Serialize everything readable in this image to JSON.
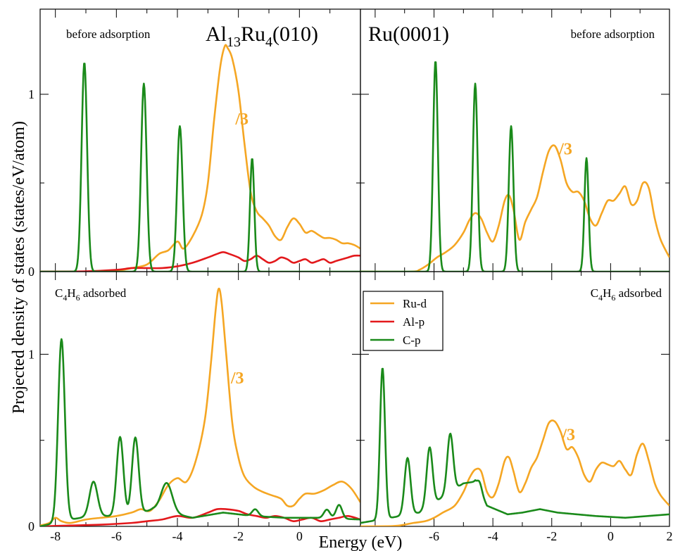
{
  "figure": {
    "ylabel": "Projected density of states (states/eV/atom)",
    "xlabel": "Energy (eV)"
  },
  "colors": {
    "Ru-d": "#f5a623",
    "Al-p": "#e3191c",
    "C-p": "#1a8a1a"
  },
  "legend": {
    "entries": [
      "Ru-d",
      "Al-p",
      "C-p"
    ],
    "placement": "top-left of bottom-right panel"
  },
  "chart_data": [
    {
      "id": "tl",
      "type": "line",
      "title_parts": {
        "base1": "Al",
        "sub1": "13",
        "base2": "Ru",
        "sub2": "4",
        "tail": "(010)"
      },
      "note": "before adsorption",
      "scale_note": "/3",
      "scale_note_at": [
        -2.1,
        0.83
      ],
      "xlim": [
        -8.5,
        2.0
      ],
      "ylim": [
        0,
        1.48
      ],
      "xticks": [],
      "yticks": [
        "0",
        "1"
      ],
      "series": [
        {
          "name": "Ru-d",
          "x": [
            -8.5,
            -7,
            -6,
            -5.5,
            -5,
            -4.6,
            -4.3,
            -4.0,
            -3.8,
            -3.5,
            -3.2,
            -3.0,
            -2.8,
            -2.6,
            -2.45,
            -2.35,
            -2.2,
            -2.0,
            -1.8,
            -1.6,
            -1.4,
            -1.2,
            -1.0,
            -0.8,
            -0.6,
            -0.4,
            -0.2,
            0.0,
            0.2,
            0.4,
            0.6,
            0.8,
            1.0,
            1.2,
            1.4,
            1.6,
            1.8,
            2.0
          ],
          "y": [
            0,
            0,
            0.005,
            0.02,
            0.04,
            0.1,
            0.12,
            0.17,
            0.13,
            0.2,
            0.32,
            0.5,
            0.85,
            1.15,
            1.27,
            1.26,
            1.2,
            1.02,
            0.72,
            0.45,
            0.34,
            0.3,
            0.26,
            0.2,
            0.18,
            0.25,
            0.3,
            0.27,
            0.22,
            0.23,
            0.21,
            0.19,
            0.19,
            0.18,
            0.16,
            0.16,
            0.15,
            0.13
          ]
        },
        {
          "name": "Al-p",
          "x": [
            -8.5,
            -7,
            -6,
            -5.5,
            -5,
            -4.5,
            -4.0,
            -3.5,
            -3.0,
            -2.7,
            -2.5,
            -2.3,
            -2.0,
            -1.8,
            -1.6,
            -1.4,
            -1.2,
            -1.0,
            -0.8,
            -0.6,
            -0.4,
            -0.2,
            0.0,
            0.2,
            0.4,
            0.6,
            0.8,
            1.0,
            1.2,
            1.4,
            1.6,
            1.8,
            2.0
          ],
          "y": [
            0,
            0.002,
            0.01,
            0.02,
            0.02,
            0.02,
            0.03,
            0.05,
            0.08,
            0.1,
            0.11,
            0.1,
            0.08,
            0.06,
            0.07,
            0.09,
            0.07,
            0.05,
            0.06,
            0.08,
            0.07,
            0.05,
            0.06,
            0.07,
            0.05,
            0.06,
            0.07,
            0.05,
            0.06,
            0.07,
            0.08,
            0.09,
            0.09
          ]
        },
        {
          "name": "C-p",
          "peaks": [
            [
              -7.05,
              1.18,
              0.09
            ],
            [
              -5.1,
              1.06,
              0.09
            ],
            [
              -3.92,
              0.82,
              0.09
            ],
            [
              -1.55,
              0.64,
              0.07
            ]
          ]
        }
      ]
    },
    {
      "id": "tr",
      "type": "line",
      "title_parts": {
        "base1": "Ru(0001)"
      },
      "note": "before adsorption",
      "scale_note": "/3",
      "scale_note_at": [
        -1.75,
        0.66
      ],
      "xlim": [
        -8.5,
        2.0
      ],
      "ylim": [
        0,
        1.48
      ],
      "xticks": [],
      "yticks": [],
      "series": [
        {
          "name": "Ru-d",
          "x": [
            -8.5,
            -6.8,
            -6.5,
            -6.2,
            -5.9,
            -5.6,
            -5.3,
            -5.0,
            -4.8,
            -4.6,
            -4.4,
            -4.2,
            -4.0,
            -3.8,
            -3.6,
            -3.45,
            -3.3,
            -3.1,
            -2.9,
            -2.7,
            -2.5,
            -2.3,
            -2.1,
            -1.9,
            -1.7,
            -1.5,
            -1.3,
            -1.1,
            -0.9,
            -0.7,
            -0.5,
            -0.3,
            -0.1,
            0.1,
            0.3,
            0.5,
            0.7,
            0.9,
            1.1,
            1.3,
            1.5,
            1.7,
            2.0
          ],
          "y": [
            0,
            0,
            0.01,
            0.04,
            0.08,
            0.11,
            0.15,
            0.22,
            0.29,
            0.33,
            0.3,
            0.22,
            0.17,
            0.26,
            0.4,
            0.43,
            0.35,
            0.18,
            0.28,
            0.35,
            0.42,
            0.56,
            0.68,
            0.71,
            0.63,
            0.5,
            0.45,
            0.45,
            0.4,
            0.3,
            0.26,
            0.33,
            0.4,
            0.4,
            0.44,
            0.48,
            0.38,
            0.4,
            0.5,
            0.47,
            0.3,
            0.18,
            0.08
          ]
        },
        {
          "name": "C-p",
          "peaks": [
            [
              -5.95,
              1.19,
              0.08
            ],
            [
              -4.6,
              1.06,
              0.08
            ],
            [
              -3.38,
              0.82,
              0.08
            ],
            [
              -0.82,
              0.64,
              0.07
            ]
          ]
        }
      ]
    },
    {
      "id": "bl",
      "type": "line",
      "note_parts": {
        "a": "C",
        "s1": "4",
        "b": "H",
        "s2": "6",
        "c": " adsorbed"
      },
      "scale_note": "/3",
      "scale_note_at": [
        -2.25,
        0.83
      ],
      "xlim": [
        -8.5,
        2.0
      ],
      "ylim": [
        0,
        1.48
      ],
      "xticks": [
        "-8",
        "-6",
        "-4",
        "-2",
        "0"
      ],
      "yticks": [
        "0",
        "1"
      ],
      "series": [
        {
          "name": "Ru-d",
          "x": [
            -8.5,
            -8.2,
            -8.0,
            -7.8,
            -7.5,
            -7.0,
            -6.5,
            -6.0,
            -5.5,
            -5.2,
            -4.9,
            -4.6,
            -4.3,
            -4.0,
            -3.7,
            -3.4,
            -3.1,
            -2.9,
            -2.75,
            -2.65,
            -2.55,
            -2.4,
            -2.2,
            -2.0,
            -1.8,
            -1.5,
            -1.2,
            -0.9,
            -0.6,
            -0.4,
            -0.2,
            0.0,
            0.2,
            0.5,
            0.8,
            1.1,
            1.4,
            1.7,
            2.0
          ],
          "y": [
            0.005,
            0.02,
            0.05,
            0.03,
            0.02,
            0.04,
            0.05,
            0.06,
            0.08,
            0.1,
            0.09,
            0.15,
            0.24,
            0.28,
            0.26,
            0.38,
            0.62,
            0.95,
            1.25,
            1.38,
            1.3,
            1.0,
            0.6,
            0.4,
            0.29,
            0.23,
            0.2,
            0.18,
            0.16,
            0.12,
            0.12,
            0.16,
            0.19,
            0.19,
            0.21,
            0.24,
            0.26,
            0.22,
            0.14
          ]
        },
        {
          "name": "Al-p",
          "x": [
            -8.5,
            -7.5,
            -6.5,
            -5.5,
            -5.0,
            -4.5,
            -4.0,
            -3.5,
            -3.0,
            -2.7,
            -2.4,
            -2.0,
            -1.7,
            -1.4,
            -1.1,
            -0.8,
            -0.5,
            -0.2,
            0.1,
            0.4,
            0.7,
            1.0,
            1.3,
            1.6,
            2.0
          ],
          "y": [
            0,
            0.005,
            0.01,
            0.02,
            0.03,
            0.04,
            0.06,
            0.05,
            0.08,
            0.1,
            0.1,
            0.09,
            0.07,
            0.06,
            0.05,
            0.06,
            0.05,
            0.03,
            0.04,
            0.05,
            0.03,
            0.04,
            0.05,
            0.06,
            0.04
          ]
        },
        {
          "name": "C-p",
          "baseline": [
            [
              -8.5,
              0
            ],
            [
              -7.5,
              0.04
            ],
            [
              -6.8,
              0.06
            ],
            [
              -5.5,
              0.06
            ],
            [
              -4.8,
              0.1
            ],
            [
              -4.3,
              0.08
            ],
            [
              -3.5,
              0.05
            ],
            [
              -2.5,
              0.08
            ],
            [
              -1.5,
              0.06
            ],
            [
              -0.5,
              0.05
            ],
            [
              0.5,
              0.05
            ],
            [
              2.0,
              0.04
            ]
          ],
          "peaks": [
            [
              -7.8,
              1.06,
              0.11
            ],
            [
              -6.75,
              0.2,
              0.13
            ],
            [
              -5.88,
              0.46,
              0.11
            ],
            [
              -5.38,
              0.45,
              0.11
            ],
            [
              -4.35,
              0.17,
              0.18
            ],
            [
              -1.45,
              0.04,
              0.1
            ],
            [
              0.9,
              0.05,
              0.1
            ],
            [
              1.3,
              0.08,
              0.1
            ]
          ]
        }
      ]
    },
    {
      "id": "br",
      "type": "line",
      "note_parts": {
        "a": "C",
        "s1": "4",
        "b": "H",
        "s2": "6",
        "c": " adsorbed"
      },
      "scale_note": "/3",
      "scale_note_at": [
        -1.65,
        0.5
      ],
      "xlim": [
        -8.5,
        2.0
      ],
      "ylim": [
        0,
        1.48
      ],
      "xticks": [
        "-6",
        "-4",
        "-2",
        "0",
        "2"
      ],
      "yticks": [],
      "series": [
        {
          "name": "Ru-d",
          "x": [
            -8.5,
            -7.4,
            -7.0,
            -6.7,
            -6.3,
            -6.0,
            -5.7,
            -5.3,
            -5.0,
            -4.8,
            -4.6,
            -4.4,
            -4.2,
            -4.0,
            -3.8,
            -3.6,
            -3.45,
            -3.3,
            -3.1,
            -2.9,
            -2.7,
            -2.5,
            -2.3,
            -2.1,
            -1.9,
            -1.7,
            -1.5,
            -1.3,
            -1.1,
            -0.9,
            -0.7,
            -0.5,
            -0.3,
            -0.1,
            0.1,
            0.3,
            0.5,
            0.7,
            0.9,
            1.1,
            1.3,
            1.5,
            1.7,
            2.0
          ],
          "y": [
            0,
            0.002,
            0.01,
            0.02,
            0.03,
            0.05,
            0.08,
            0.12,
            0.2,
            0.28,
            0.33,
            0.32,
            0.2,
            0.17,
            0.25,
            0.38,
            0.4,
            0.32,
            0.2,
            0.25,
            0.34,
            0.4,
            0.5,
            0.6,
            0.61,
            0.55,
            0.45,
            0.46,
            0.4,
            0.3,
            0.26,
            0.33,
            0.37,
            0.36,
            0.35,
            0.38,
            0.33,
            0.3,
            0.42,
            0.48,
            0.38,
            0.25,
            0.18,
            0.12
          ]
        },
        {
          "name": "C-p",
          "baseline": [
            [
              -8.5,
              0.02
            ],
            [
              -7.8,
              0.04
            ],
            [
              -6.5,
              0.08
            ],
            [
              -5.0,
              0.25
            ],
            [
              -4.6,
              0.26
            ],
            [
              -4.2,
              0.12
            ],
            [
              -3.5,
              0.07
            ],
            [
              -3.0,
              0.08
            ],
            [
              -2.4,
              0.1
            ],
            [
              -1.8,
              0.08
            ],
            [
              -0.5,
              0.06
            ],
            [
              0.5,
              0.05
            ],
            [
              2.0,
              0.07
            ]
          ],
          "peaks": [
            [
              -7.75,
              0.88,
              0.085
            ],
            [
              -6.9,
              0.33,
              0.1
            ],
            [
              -6.15,
              0.34,
              0.1
            ],
            [
              -5.45,
              0.34,
              0.1
            ],
            [
              -4.45,
              0.05,
              0.08
            ]
          ]
        }
      ]
    }
  ]
}
